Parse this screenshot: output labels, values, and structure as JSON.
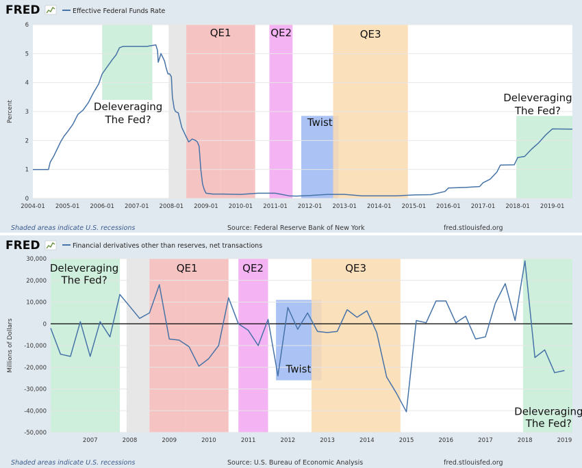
{
  "colors": {
    "line": "#4572a7",
    "green": "#c6ecd6",
    "gray": "#e3e3e3",
    "red": "#f5b8b8",
    "magenta": "#f2a6f0",
    "blue": "#9cb8f2",
    "orange": "#fadbb0"
  },
  "logo_text": "FRED",
  "chart_data": [
    {
      "type": "line",
      "title": "Effective Federal Funds Rate",
      "ylabel": "Percent",
      "ylim": [
        0,
        6
      ],
      "yticks": [
        0,
        1,
        2,
        3,
        4,
        5,
        6
      ],
      "xlim": [
        2004.0,
        2019.58
      ],
      "xticks": [
        {
          "v": 2004.0,
          "label": "2004-01"
        },
        {
          "v": 2005.0,
          "label": "2005-01"
        },
        {
          "v": 2006.0,
          "label": "2006-01"
        },
        {
          "v": 2007.0,
          "label": "2007-01"
        },
        {
          "v": 2008.0,
          "label": "2008-01"
        },
        {
          "v": 2009.0,
          "label": "2009-01"
        },
        {
          "v": 2010.0,
          "label": "2010-01"
        },
        {
          "v": 2011.0,
          "label": "2011-01"
        },
        {
          "v": 2012.0,
          "label": "2012-01"
        },
        {
          "v": 2013.0,
          "label": "2013-01"
        },
        {
          "v": 2014.0,
          "label": "2014-01"
        },
        {
          "v": 2015.0,
          "label": "2015-01"
        },
        {
          "v": 2016.0,
          "label": "2016-01"
        },
        {
          "v": 2017.0,
          "label": "2017-01"
        },
        {
          "v": 2018.0,
          "label": "2018-01"
        },
        {
          "v": 2019.0,
          "label": "2019-01"
        }
      ],
      "bands": [
        {
          "x0": 2006.0,
          "x1": 2007.45,
          "y0": 3.4,
          "y1": 6,
          "color": "green"
        },
        {
          "x0": 2007.92,
          "x1": 2008.43,
          "y0": 0,
          "y1": 6,
          "color": "gray"
        },
        {
          "x0": 2008.43,
          "x1": 2009.42,
          "y0": 0,
          "y1": 6,
          "color": "red"
        },
        {
          "x0": 2009.42,
          "x1": 2010.42,
          "y0": 0,
          "y1": 6,
          "color": "red"
        },
        {
          "x0": 2010.83,
          "x1": 2011.5,
          "y0": 0,
          "y1": 6,
          "color": "magenta"
        },
        {
          "x0": 2011.75,
          "x1": 2012.83,
          "y0": 0,
          "y1": 2.85,
          "color": "blue"
        },
        {
          "x0": 2012.67,
          "x1": 2014.83,
          "y0": 0,
          "y1": 6,
          "color": "orange"
        },
        {
          "x0": 2017.96,
          "x1": 2019.58,
          "y0": 0,
          "y1": 2.85,
          "color": "green"
        }
      ],
      "annotations": [
        {
          "text": "QE1",
          "x": 2009.42,
          "y": 5.6,
          "anchor": "middle"
        },
        {
          "text": "QE2",
          "x": 2011.17,
          "y": 5.6,
          "anchor": "middle"
        },
        {
          "text": "QE3",
          "x": 2013.75,
          "y": 5.55,
          "anchor": "middle"
        },
        {
          "text": "Twist",
          "x": 2012.29,
          "y": 2.5,
          "anchor": "middle"
        },
        {
          "text": "Deleveraging",
          "x": 2006.75,
          "y": 3.05,
          "anchor": "middle"
        },
        {
          "text": "The Fed?",
          "x": 2006.75,
          "y": 2.6,
          "anchor": "middle"
        },
        {
          "text": "Deleveraging",
          "x": 2018.58,
          "y": 3.35,
          "anchor": "middle"
        },
        {
          "text": "The Fed?",
          "x": 2018.58,
          "y": 2.9,
          "anchor": "middle"
        }
      ],
      "series": [
        {
          "x": [
            2004.0,
            2004.45,
            2004.5,
            2004.6,
            2004.7,
            2004.8,
            2004.9,
            2005.0,
            2005.15,
            2005.3,
            2005.45,
            2005.6,
            2005.75,
            2005.9,
            2006.0,
            2006.15,
            2006.3,
            2006.4,
            2006.5,
            2006.6,
            2006.8,
            2007.0,
            2007.3,
            2007.55,
            2007.6,
            2007.62,
            2007.7,
            2007.8,
            2007.85,
            2007.9,
            2007.95,
            2008.0,
            2008.03,
            2008.08,
            2008.12,
            2008.2,
            2008.3,
            2008.4,
            2008.5,
            2008.6,
            2008.7,
            2008.75,
            2008.8,
            2008.85,
            2008.9,
            2008.95,
            2009.0,
            2009.2,
            2009.5,
            2010.0,
            2010.5,
            2011.0,
            2011.4,
            2011.6,
            2012.0,
            2012.5,
            2013.0,
            2013.5,
            2014.0,
            2014.5,
            2015.0,
            2015.5,
            2015.9,
            2016.0,
            2016.5,
            2016.9,
            2017.0,
            2017.2,
            2017.4,
            2017.5,
            2017.9,
            2018.0,
            2018.2,
            2018.4,
            2018.6,
            2018.8,
            2019.0,
            2019.58
          ],
          "y": [
            1.0,
            1.0,
            1.25,
            1.45,
            1.7,
            1.95,
            2.15,
            2.3,
            2.55,
            2.9,
            3.05,
            3.3,
            3.65,
            3.95,
            4.3,
            4.55,
            4.8,
            4.95,
            5.2,
            5.25,
            5.25,
            5.25,
            5.25,
            5.3,
            5.1,
            4.7,
            5.0,
            4.75,
            4.5,
            4.3,
            4.3,
            4.2,
            3.5,
            3.1,
            3.0,
            2.95,
            2.45,
            2.2,
            1.95,
            2.05,
            2.0,
            1.95,
            1.8,
            1.0,
            0.5,
            0.3,
            0.18,
            0.15,
            0.15,
            0.14,
            0.18,
            0.18,
            0.09,
            0.08,
            0.1,
            0.14,
            0.14,
            0.09,
            0.09,
            0.09,
            0.12,
            0.13,
            0.24,
            0.36,
            0.38,
            0.41,
            0.54,
            0.66,
            0.91,
            1.15,
            1.16,
            1.41,
            1.45,
            1.7,
            1.91,
            2.18,
            2.4,
            2.39
          ]
        }
      ],
      "footer": {
        "note": "Shaded areas indicate U.S. recessions",
        "source": "Source: Federal Reserve Bank of New York",
        "site": "fred.stlouisfed.org"
      }
    },
    {
      "type": "line",
      "title": "Financial derivatives other than reserves, net transactions",
      "ylabel": "Millions of Dollars",
      "ylim": [
        -50000,
        30000
      ],
      "yticks": [
        -50000,
        -40000,
        -30000,
        -20000,
        -10000,
        0,
        10000,
        20000,
        30000
      ],
      "ytick_labels": [
        "-50,000",
        "-40,000",
        "-30,000",
        "-20,000",
        "-10,000",
        "0",
        "10,000",
        "20,000",
        "30,000"
      ],
      "xlim": [
        2006.0,
        2019.2
      ],
      "xticks": [
        {
          "v": 2007.0,
          "label": "2007"
        },
        {
          "v": 2008.0,
          "label": "2008"
        },
        {
          "v": 2009.0,
          "label": "2009"
        },
        {
          "v": 2010.0,
          "label": "2010"
        },
        {
          "v": 2011.0,
          "label": "2011"
        },
        {
          "v": 2012.0,
          "label": "2012"
        },
        {
          "v": 2013.0,
          "label": "2013"
        },
        {
          "v": 2014.0,
          "label": "2014"
        },
        {
          "v": 2015.0,
          "label": "2015"
        },
        {
          "v": 2016.0,
          "label": "2016"
        },
        {
          "v": 2017.0,
          "label": "2017"
        },
        {
          "v": 2018.0,
          "label": "2018"
        },
        {
          "v": 2019.0,
          "label": "2019"
        }
      ],
      "zero_line": true,
      "bands": [
        {
          "x0": 2006.0,
          "x1": 2007.75,
          "y0": -50000,
          "y1": 30000,
          "color": "green"
        },
        {
          "x0": 2007.92,
          "x1": 2008.5,
          "y0": -50000,
          "y1": 30000,
          "color": "gray"
        },
        {
          "x0": 2008.5,
          "x1": 2009.42,
          "y0": -50000,
          "y1": 30000,
          "color": "red"
        },
        {
          "x0": 2009.42,
          "x1": 2010.5,
          "y0": -50000,
          "y1": 30000,
          "color": "red"
        },
        {
          "x0": 2010.75,
          "x1": 2011.5,
          "y0": -50000,
          "y1": 30000,
          "color": "magenta"
        },
        {
          "x0": 2011.7,
          "x1": 2012.85,
          "y0": -26000,
          "y1": 11000,
          "color": "blue"
        },
        {
          "x0": 2012.6,
          "x1": 2014.85,
          "y0": -50000,
          "y1": 30000,
          "color": "orange"
        },
        {
          "x0": 2017.95,
          "x1": 2019.2,
          "y0": -50000,
          "y1": 30000,
          "color": "green"
        }
      ],
      "annotations": [
        {
          "text": "Deleveraging",
          "x": 2006.85,
          "y": 24000,
          "anchor": "middle"
        },
        {
          "text": "The Fed?",
          "x": 2006.85,
          "y": 18500,
          "anchor": "middle"
        },
        {
          "text": "QE1",
          "x": 2009.45,
          "y": 24000,
          "anchor": "middle"
        },
        {
          "text": "QE2",
          "x": 2011.12,
          "y": 24000,
          "anchor": "middle"
        },
        {
          "text": "QE3",
          "x": 2013.72,
          "y": 24000,
          "anchor": "middle"
        },
        {
          "text": "Twist",
          "x": 2012.27,
          "y": -22500,
          "anchor": "middle"
        },
        {
          "text": "Deleveraging",
          "x": 2018.6,
          "y": -42000,
          "anchor": "middle"
        },
        {
          "text": "The Fed?",
          "x": 2018.6,
          "y": -47500,
          "anchor": "middle"
        }
      ],
      "series": [
        {
          "x": [
            2006.0,
            2006.25,
            2006.5,
            2006.75,
            2007.0,
            2007.25,
            2007.5,
            2007.75,
            2008.0,
            2008.25,
            2008.5,
            2008.75,
            2009.0,
            2009.25,
            2009.5,
            2009.75,
            2010.0,
            2010.25,
            2010.5,
            2010.75,
            2011.0,
            2011.25,
            2011.5,
            2011.75,
            2012.0,
            2012.25,
            2012.5,
            2012.75,
            2013.0,
            2013.25,
            2013.5,
            2013.75,
            2014.0,
            2014.25,
            2014.5,
            2014.75,
            2015.0,
            2015.25,
            2015.5,
            2015.75,
            2016.0,
            2016.25,
            2016.5,
            2016.75,
            2017.0,
            2017.25,
            2017.5,
            2017.75,
            2018.0,
            2018.25,
            2018.5,
            2018.75,
            2019.0
          ],
          "y": [
            -2000,
            -14000,
            -15000,
            1000,
            -15000,
            1000,
            -6000,
            13500,
            8000,
            2500,
            5000,
            18000,
            -7000,
            -7500,
            -10500,
            -19500,
            -16000,
            -10000,
            12000,
            0,
            -3000,
            -10000,
            2000,
            -24000,
            7500,
            -2500,
            5000,
            -3500,
            -4000,
            -3500,
            6500,
            3000,
            6000,
            -4000,
            -24500,
            -32000,
            -40500,
            1500,
            500,
            10500,
            10500,
            500,
            3500,
            -7000,
            -6000,
            9500,
            18500,
            1500,
            29000,
            -15500,
            -12000,
            -22500,
            -21500
          ]
        }
      ],
      "footer": {
        "note": "Shaded areas indicate U.S. recessions",
        "source": "Source: U.S. Bureau of Economic Analysis",
        "site": "fred.stlouisfed.org"
      }
    }
  ]
}
